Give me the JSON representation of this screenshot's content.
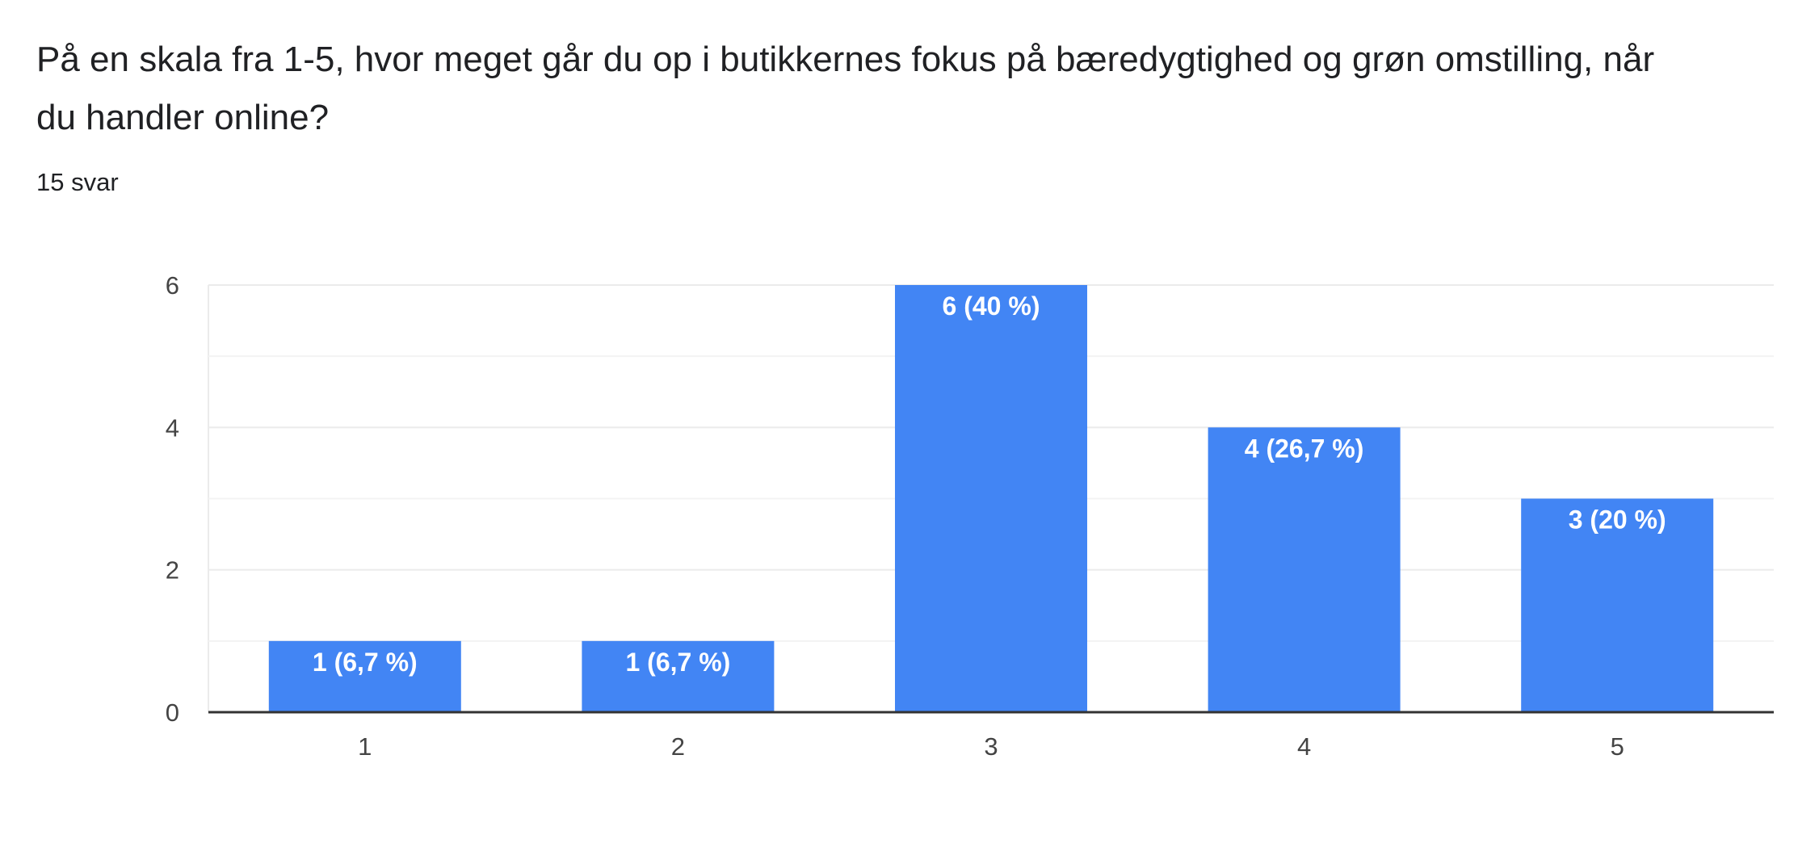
{
  "question": {
    "title": "På en skala fra 1-5, hvor meget går du op i butikkernes fokus på bæredygtighed og grøn omstilling, når du handler online?",
    "response_count": "15 svar"
  },
  "colors": {
    "bar": "#4285f4",
    "bar_label": "#ffffff",
    "gridline": "#ebebeb",
    "minor_gridline": "#f3f3f3",
    "baseline": "#333333",
    "tick_label": "#444444"
  },
  "chart_data": {
    "type": "bar",
    "title": "",
    "xlabel": "",
    "ylabel": "",
    "categories": [
      "1",
      "2",
      "3",
      "4",
      "5"
    ],
    "values": [
      1,
      1,
      6,
      4,
      3
    ],
    "value_labels": [
      "1 (6,7 %)",
      "1 (6,7 %)",
      "6 (40 %)",
      "4 (26,7 %)",
      "3 (20 %)"
    ],
    "ylim": [
      0,
      6
    ],
    "yticks": [
      0,
      2,
      4,
      6
    ],
    "ytick_labels": [
      "0",
      "2",
      "4",
      "6"
    ],
    "minor_gridlines": [
      1,
      3,
      5
    ],
    "grid": true,
    "legend": "none"
  }
}
